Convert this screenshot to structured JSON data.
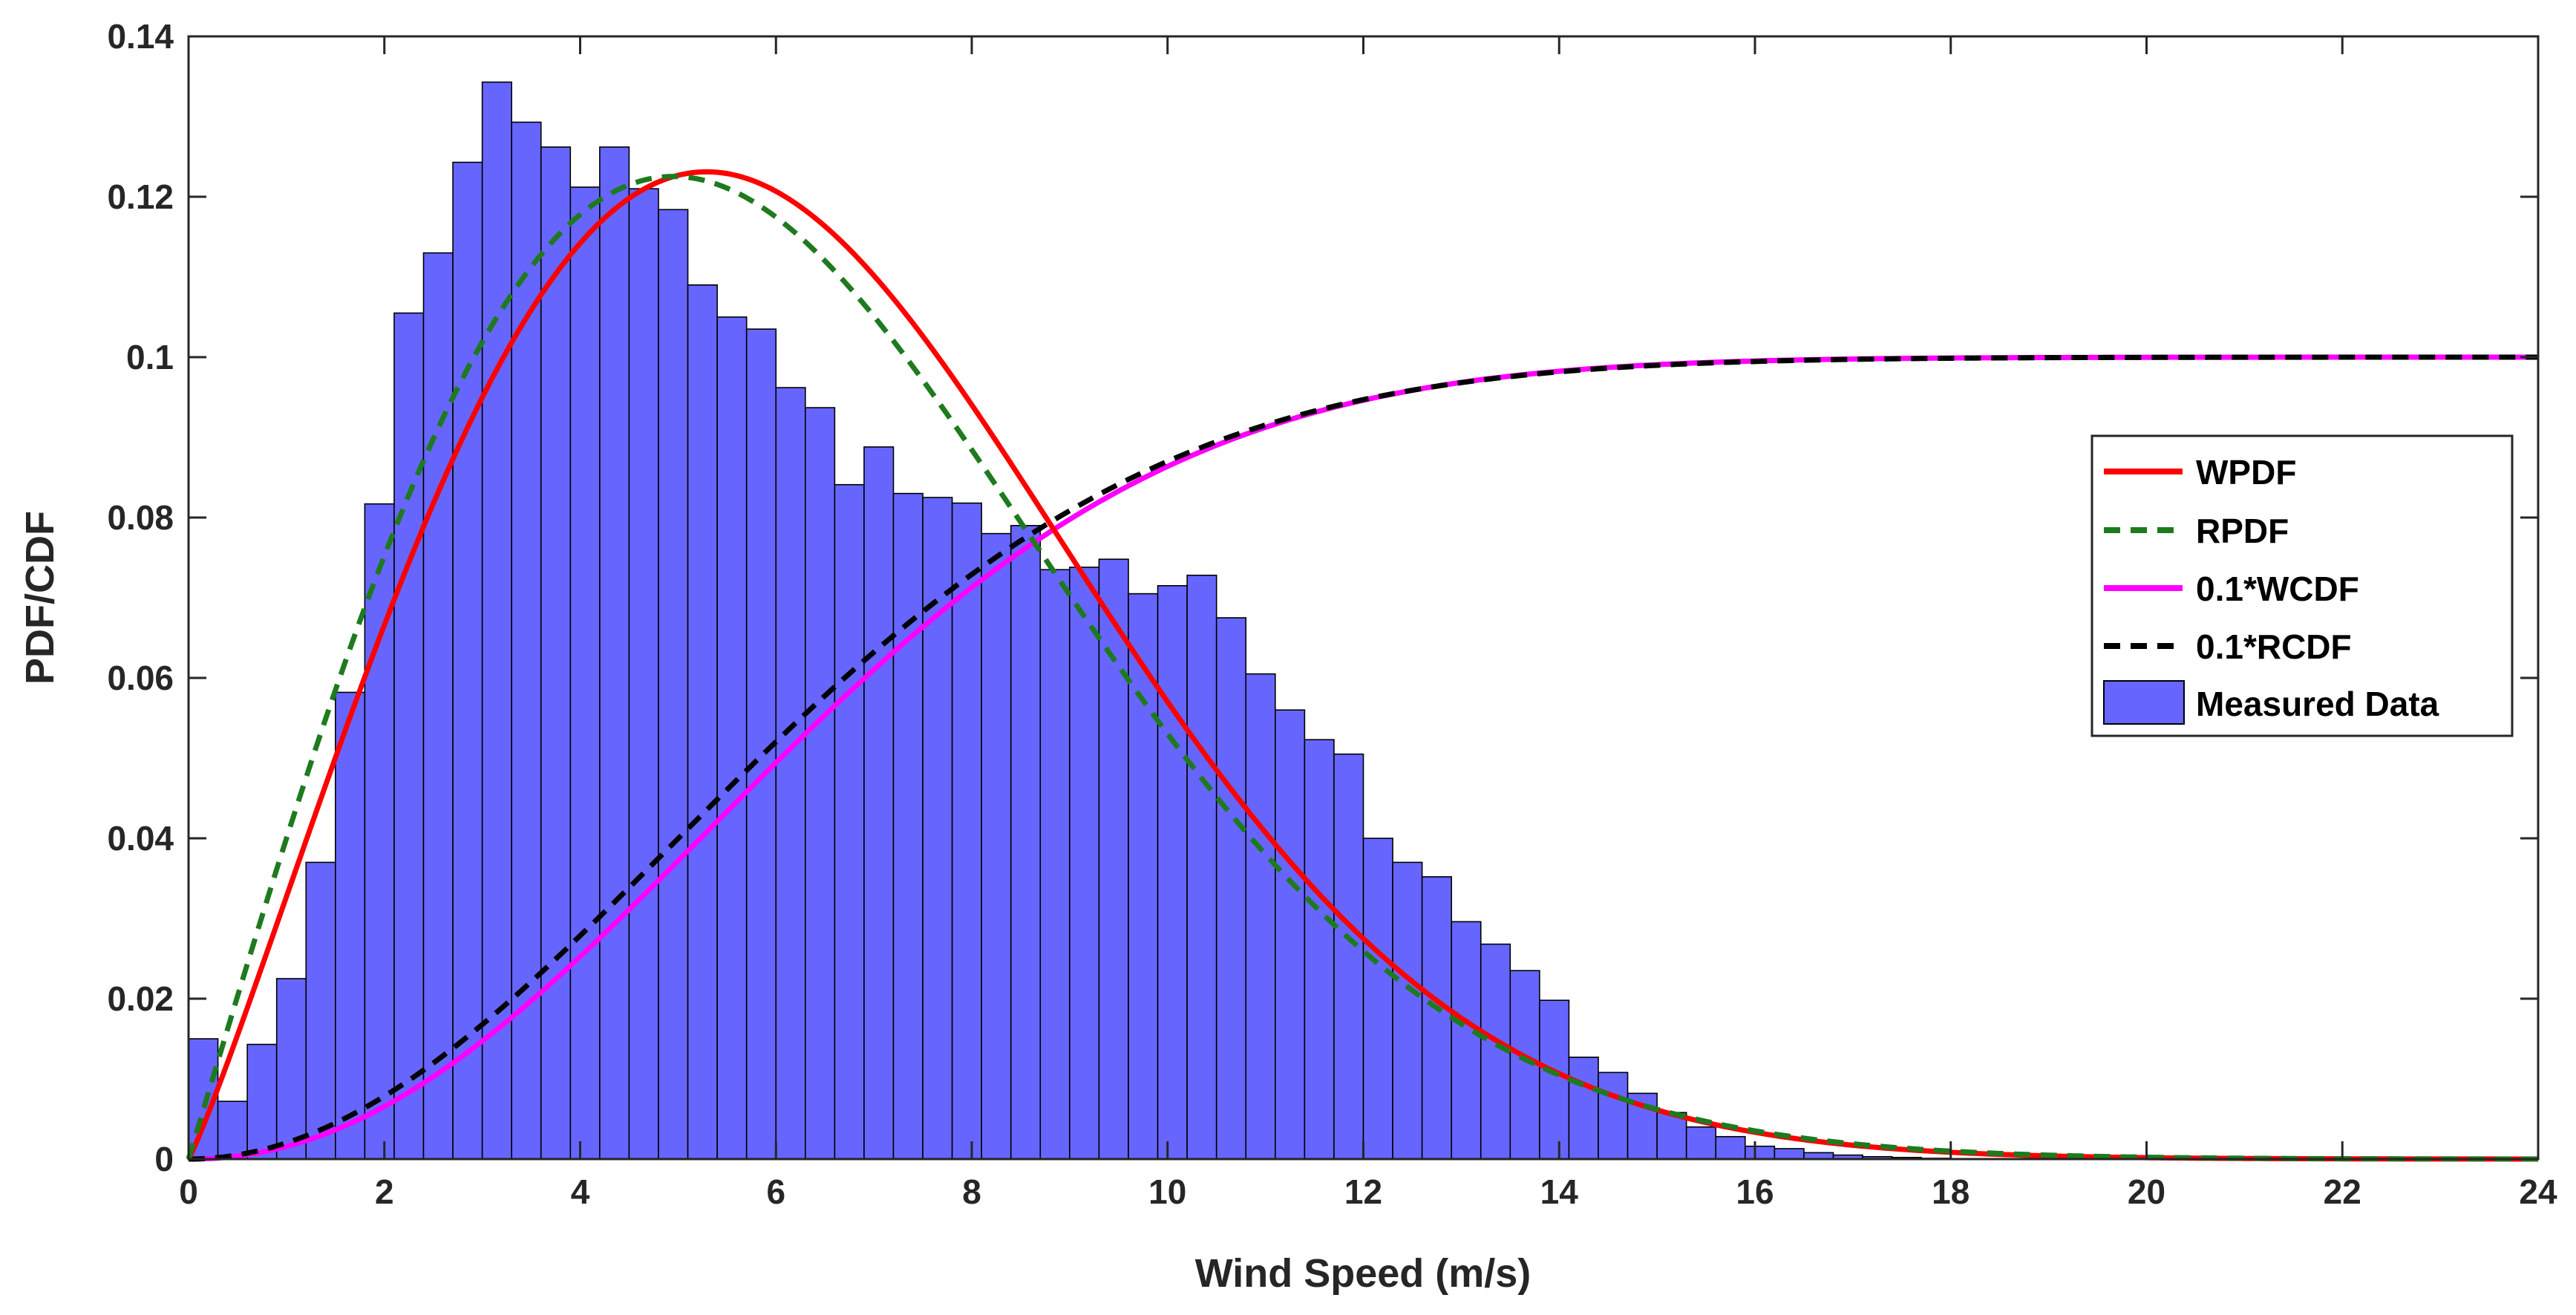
{
  "chart_data": {
    "type": "bar",
    "title": "",
    "xlabel": "Wind Speed (m/s)",
    "ylabel": "PDF/CDF",
    "xlim": [
      0,
      24
    ],
    "ylim": [
      0,
      0.14
    ],
    "xticks": [
      0,
      2,
      4,
      6,
      8,
      10,
      12,
      14,
      16,
      18,
      20,
      22,
      24
    ],
    "yticks": [
      0,
      0.02,
      0.04,
      0.06,
      0.08,
      0.1,
      0.12,
      0.14
    ],
    "xtick_labels": [
      "0",
      "2",
      "4",
      "6",
      "8",
      "10",
      "12",
      "14",
      "16",
      "18",
      "20",
      "22",
      "24"
    ],
    "ytick_labels": [
      "0",
      "0.02",
      "0.04",
      "0.06",
      "0.08",
      "0.1",
      "0.12",
      "0.14"
    ],
    "grid": false,
    "legend_position": "right",
    "histogram": {
      "name": "Measured Data",
      "bin_width": 0.3,
      "bin_start": 0,
      "values": [
        0.015,
        0.0072,
        0.0143,
        0.0225,
        0.037,
        0.0582,
        0.0817,
        0.1055,
        0.113,
        0.1243,
        0.1343,
        0.1293,
        0.1262,
        0.1212,
        0.1262,
        0.121,
        0.1184,
        0.109,
        0.105,
        0.1035,
        0.0962,
        0.0937,
        0.0841,
        0.0888,
        0.083,
        0.0825,
        0.0818,
        0.078,
        0.079,
        0.0735,
        0.0738,
        0.0748,
        0.0705,
        0.0715,
        0.0728,
        0.0675,
        0.0605,
        0.056,
        0.0523,
        0.0505,
        0.04,
        0.037,
        0.0352,
        0.0296,
        0.0268,
        0.0235,
        0.0198,
        0.0127,
        0.0108,
        0.0082,
        0.0058,
        0.004,
        0.0028,
        0.0016,
        0.0013,
        0.0008,
        0.0005,
        0.0003,
        0.0002,
        0.0001
      ],
      "color": "#6666ff"
    },
    "series": [
      {
        "name": "WPDF",
        "kind": "weibull_pdf",
        "k": 2.1,
        "c": 7.2,
        "scale": 1.0,
        "color": "#ff0000",
        "dash": "solid"
      },
      {
        "name": "RPDF",
        "kind": "rayleigh_pdf",
        "sigma": 4.95,
        "scale": 1.0,
        "color": "#1e7a1e",
        "dash": "dashed"
      },
      {
        "name": "0.1*WCDF",
        "kind": "weibull_cdf",
        "k": 2.1,
        "c": 7.2,
        "scale": 0.1,
        "color": "#ff00ff",
        "dash": "solid"
      },
      {
        "name": "0.1*RCDF",
        "kind": "rayleigh_cdf",
        "sigma": 4.95,
        "scale": 0.1,
        "color": "#000000",
        "dash": "dashed"
      }
    ]
  }
}
